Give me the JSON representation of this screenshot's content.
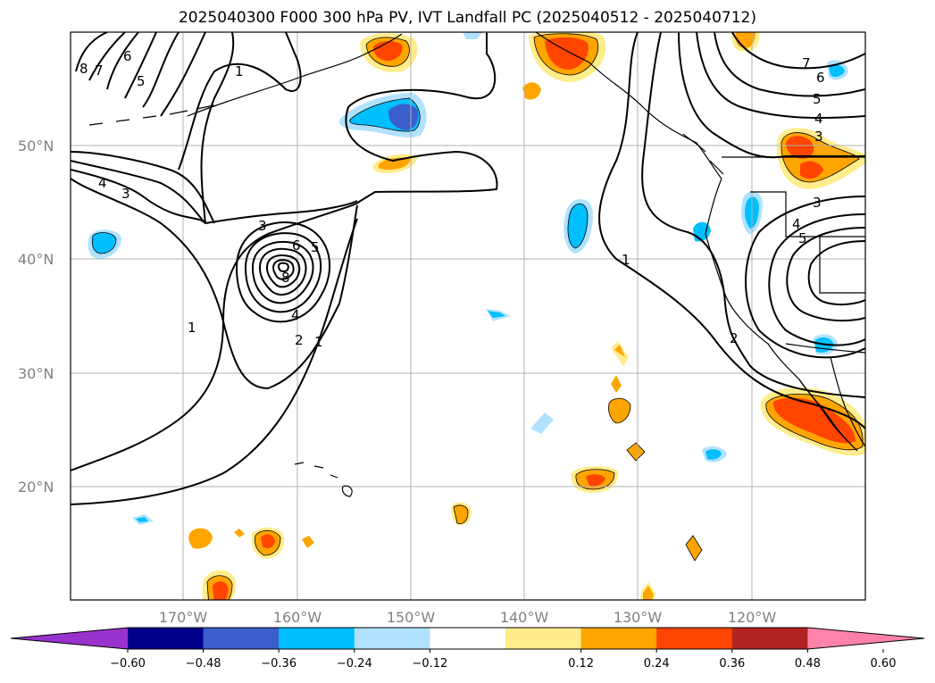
{
  "title": "2025040300 F000 300 hPa PV, IVT Landfall PC (2025040512 - 2025040712)",
  "lat_labels": [
    "50°N",
    "40°N",
    "30°N",
    "20°N"
  ],
  "lon_labels": [
    "170°W",
    "160°W",
    "150°W",
    "140°W",
    "130°W",
    "120°W"
  ],
  "colorbar": {
    "ticks": [
      "−0.60",
      "−0.48",
      "−0.36",
      "−0.24",
      "−0.12",
      "0.12",
      "0.24",
      "0.36",
      "0.48",
      "0.60"
    ],
    "colors": [
      "#9932cc",
      "#00008b",
      "#3a5fcd",
      "#00bfff",
      "#b0e2ff",
      "#ffffff",
      "#ffec8b",
      "#ffa500",
      "#ff4500",
      "#b22222",
      "#ff82ab"
    ]
  },
  "contour_labels": [
    "1",
    "2",
    "3",
    "4",
    "5",
    "6",
    "7",
    "8"
  ],
  "colors": {
    "pos_light": "#ffec8b",
    "pos_mid": "#ffa500",
    "pos_strong": "#ff4500",
    "neg_light": "#b0e2ff",
    "neg_mid": "#00bfff",
    "neg_strong": "#3a5fcd",
    "grid": "#b0b0b0"
  }
}
